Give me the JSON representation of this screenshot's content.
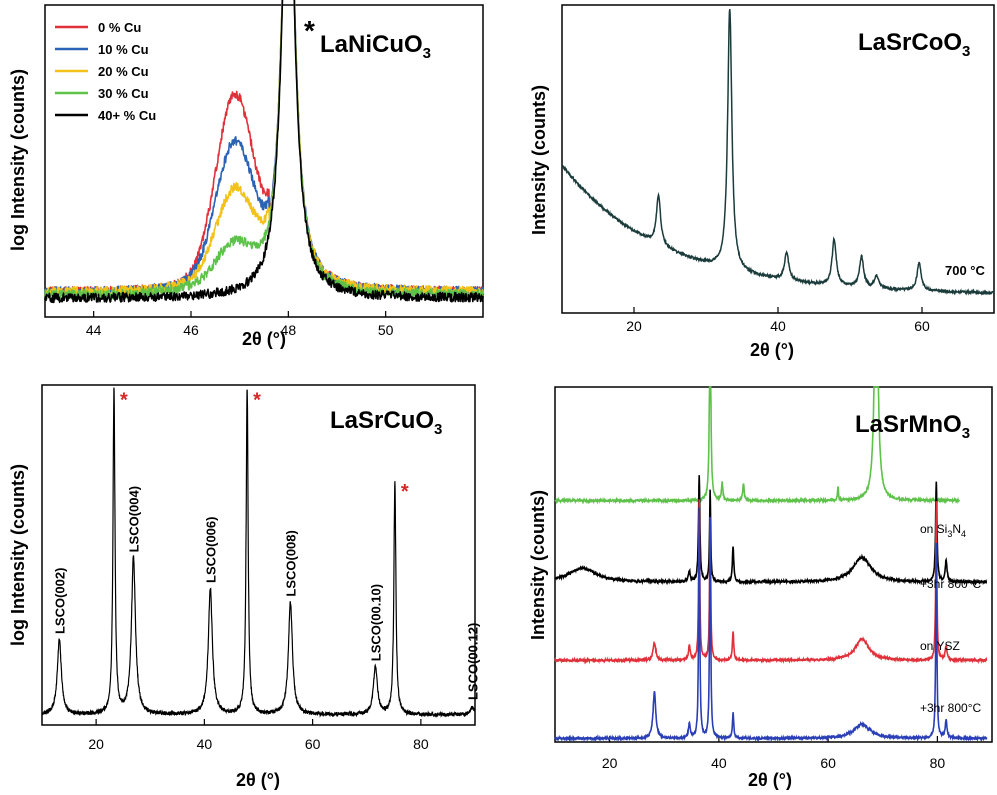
{
  "figure": {
    "panels_order": [
      "LaNiCuO3",
      "LaSrCoO3",
      "LaSrCuO3",
      "LaSrMnO3"
    ]
  },
  "chart_data": [
    {
      "id": "LaNiCuO3",
      "type": "line",
      "title": "LaNiCuO",
      "title_sub": "3",
      "title_marker": "*",
      "xlabel": "2θ (°)",
      "ylabel": "log Intensity (counts)",
      "xlim": [
        43,
        52
      ],
      "ylim": [
        0,
        1
      ],
      "x_ticks": [
        44,
        46,
        48,
        50
      ],
      "y_ticks_shown": false,
      "legend_position": "top-left",
      "series": [
        {
          "name": "0 % Cu",
          "color": "#e0303a",
          "baseline": 0.08,
          "shoulder_amp": 0.6
        },
        {
          "name": "10 % Cu",
          "color": "#2a63b5",
          "baseline": 0.08,
          "shoulder_amp": 0.45
        },
        {
          "name": "20 % Cu",
          "color": "#f2c21a",
          "baseline": 0.08,
          "shoulder_amp": 0.3
        },
        {
          "name": "30 % Cu",
          "color": "#5ec24a",
          "baseline": 0.07,
          "shoulder_amp": 0.14
        },
        {
          "name": "40+ % Cu",
          "color": "#000000",
          "baseline": 0.06,
          "shoulder_amp": 0.0
        }
      ],
      "main_peak_x": 48.0,
      "shoulder_x": 46.9
    },
    {
      "id": "LaSrCoO3",
      "type": "line",
      "title": "LaSrCoO",
      "title_sub": "3",
      "xlabel": "2θ (°)",
      "ylabel": "Intensity (counts)",
      "xlim": [
        10,
        70
      ],
      "ylim": [
        0,
        1
      ],
      "x_ticks": [
        20,
        40,
        60
      ],
      "y_ticks_shown": false,
      "annotation": "700 °C",
      "series": [
        {
          "name": "",
          "color": "#1b3b3b",
          "peaks": [
            {
              "x": 23.4,
              "h": 0.16
            },
            {
              "x": 33.3,
              "h": 0.85
            },
            {
              "x": 41.2,
              "h": 0.09
            },
            {
              "x": 47.8,
              "h": 0.15
            },
            {
              "x": 51.6,
              "h": 0.1
            },
            {
              "x": 53.7,
              "h": 0.04
            },
            {
              "x": 59.6,
              "h": 0.09
            }
          ]
        }
      ]
    },
    {
      "id": "LaSrCuO3",
      "type": "line",
      "title": "LaSrCuO",
      "title_sub": "3",
      "xlabel": "2θ (°)",
      "ylabel": "log Intensity (counts)",
      "xlim": [
        10,
        90
      ],
      "ylim": [
        0,
        1
      ],
      "x_ticks": [
        20,
        40,
        60,
        80
      ],
      "y_ticks_shown": false,
      "series": [
        {
          "name": "",
          "color": "#000000",
          "peaks": [
            {
              "x": 13.2,
              "h": 0.22,
              "label": "LSCO(002)"
            },
            {
              "x": 23.3,
              "h": 0.96,
              "star": true
            },
            {
              "x": 26.9,
              "h": 0.46,
              "label": "LSCO(004)"
            },
            {
              "x": 41.1,
              "h": 0.37,
              "label": "LSCO(006)"
            },
            {
              "x": 47.9,
              "h": 0.96,
              "star": true
            },
            {
              "x": 55.9,
              "h": 0.33,
              "label": "LSCO(008)"
            },
            {
              "x": 71.6,
              "h": 0.14,
              "label": "LSCO(00.10)"
            },
            {
              "x": 75.2,
              "h": 0.69,
              "star": true
            },
            {
              "x": 89.5,
              "h": 0.02,
              "label": "LSCO(00.12)"
            }
          ]
        }
      ]
    },
    {
      "id": "LaSrMnO3",
      "type": "line",
      "title": "LaSrMnO",
      "title_sub": "3",
      "xlabel": "2θ (°)",
      "ylabel": "Intensity (counts)",
      "xlim": [
        10,
        90
      ],
      "ylim": [
        0,
        1
      ],
      "x_ticks": [
        20,
        40,
        60,
        80
      ],
      "y_ticks_shown": false,
      "series": [
        {
          "name": "on Si3N4",
          "label": "on Si",
          "label_sub": "3",
          "label_mid": "N",
          "label_sub2": "4",
          "color": "#5ec24a",
          "offset": 0.67
        },
        {
          "name": "+3hr 800°C",
          "label": "+3hr 800°C",
          "color": "#000000",
          "offset": 0.44
        },
        {
          "name": "on YSZ",
          "label": "on YSZ",
          "color": "#e0303a",
          "offset": 0.22
        },
        {
          "name": "+3hr 800°C",
          "label": "+3hr 800°C",
          "color": "#2a3fb5",
          "offset": 0.0
        }
      ]
    }
  ]
}
